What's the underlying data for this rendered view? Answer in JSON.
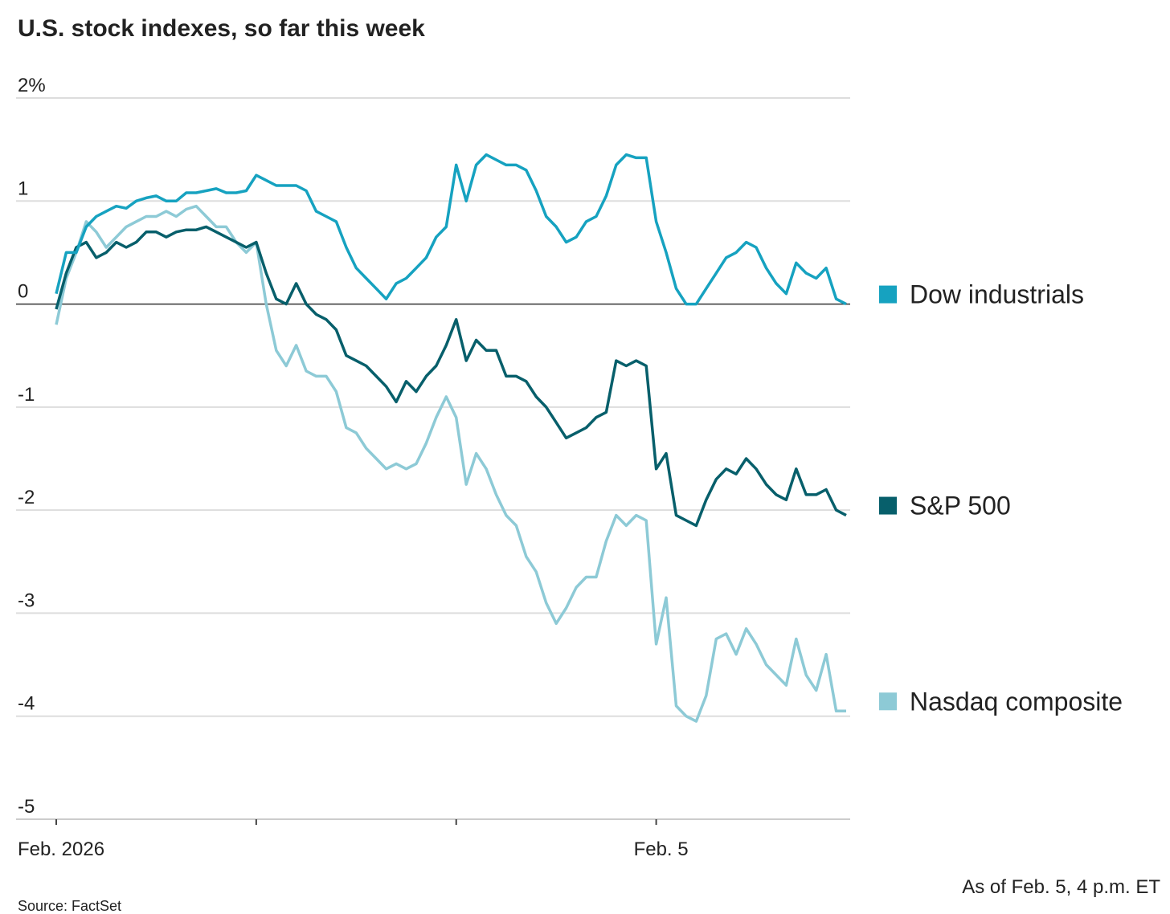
{
  "chart_data": {
    "type": "line",
    "title": "U.S. stock indexes, so far this week",
    "note": "As of Feb. 5, 4 p.m. ET",
    "source": "Source: FactSet",
    "x": [
      0,
      0.05,
      0.1,
      0.15,
      0.2,
      0.25,
      0.3,
      0.35,
      0.4,
      0.45,
      0.5,
      0.55,
      0.6,
      0.65,
      0.7,
      0.75,
      0.8,
      0.85,
      0.9,
      0.95,
      1,
      1.05,
      1.1,
      1.15,
      1.2,
      1.25,
      1.3,
      1.35,
      1.4,
      1.45,
      1.5,
      1.55,
      1.6,
      1.65,
      1.7,
      1.75,
      1.8,
      1.85,
      1.9,
      1.95,
      2,
      2.05,
      2.1,
      2.15,
      2.2,
      2.25,
      2.3,
      2.35,
      2.4,
      2.45,
      2.5,
      2.55,
      2.6,
      2.65,
      2.7,
      2.75,
      2.8,
      2.85,
      2.9,
      2.95,
      3,
      3.05,
      3.1,
      3.15,
      3.2,
      3.25,
      3.3,
      3.35,
      3.4,
      3.45,
      3.5,
      3.55,
      3.6,
      3.65,
      3.7,
      3.75,
      3.8,
      3.85,
      3.9,
      3.95
    ],
    "series": [
      {
        "name": "Dow industrials",
        "color": "#16a2c0",
        "values": [
          0.1,
          0.5,
          0.5,
          0.75,
          0.85,
          0.9,
          0.95,
          0.93,
          1.0,
          1.03,
          1.05,
          1.0,
          1.0,
          1.08,
          1.08,
          1.1,
          1.12,
          1.08,
          1.08,
          1.1,
          1.25,
          1.2,
          1.15,
          1.15,
          1.15,
          1.1,
          0.9,
          0.85,
          0.8,
          0.55,
          0.35,
          0.25,
          0.15,
          0.05,
          0.2,
          0.25,
          0.35,
          0.45,
          0.65,
          0.75,
          1.35,
          1.0,
          1.35,
          1.45,
          1.4,
          1.35,
          1.35,
          1.3,
          1.1,
          0.85,
          0.75,
          0.6,
          0.65,
          0.8,
          0.85,
          1.05,
          1.35,
          1.45,
          1.42,
          1.42,
          0.8,
          0.5,
          0.15,
          0.0,
          0.0,
          0.15,
          0.3,
          0.45,
          0.5,
          0.6,
          0.55,
          0.35,
          0.2,
          0.1,
          0.4,
          0.3,
          0.25,
          0.35,
          0.05,
          0.0
        ]
      },
      {
        "name": "S&P 500",
        "color": "#075f6b",
        "values": [
          -0.05,
          0.3,
          0.55,
          0.6,
          0.45,
          0.5,
          0.6,
          0.55,
          0.6,
          0.7,
          0.7,
          0.65,
          0.7,
          0.72,
          0.72,
          0.75,
          0.7,
          0.65,
          0.6,
          0.55,
          0.6,
          0.3,
          0.05,
          0.0,
          0.2,
          0.0,
          -0.1,
          -0.15,
          -0.25,
          -0.5,
          -0.55,
          -0.6,
          -0.7,
          -0.8,
          -0.95,
          -0.75,
          -0.85,
          -0.7,
          -0.6,
          -0.4,
          -0.15,
          -0.55,
          -0.35,
          -0.45,
          -0.45,
          -0.7,
          -0.7,
          -0.75,
          -0.9,
          -1.0,
          -1.15,
          -1.3,
          -1.25,
          -1.2,
          -1.1,
          -1.05,
          -0.55,
          -0.6,
          -0.55,
          -0.6,
          -1.6,
          -1.45,
          -2.05,
          -2.1,
          -2.15,
          -1.9,
          -1.7,
          -1.6,
          -1.65,
          -1.5,
          -1.6,
          -1.75,
          -1.85,
          -1.9,
          -1.6,
          -1.85,
          -1.85,
          -1.8,
          -2.0,
          -2.05
        ]
      },
      {
        "name": "Nasdaq composite",
        "color": "#8dcad6",
        "values": [
          -0.2,
          0.25,
          0.5,
          0.8,
          0.7,
          0.55,
          0.65,
          0.75,
          0.8,
          0.85,
          0.85,
          0.9,
          0.85,
          0.92,
          0.95,
          0.85,
          0.75,
          0.75,
          0.6,
          0.5,
          0.6,
          0.0,
          -0.45,
          -0.6,
          -0.4,
          -0.65,
          -0.7,
          -0.7,
          -0.85,
          -1.2,
          -1.25,
          -1.4,
          -1.5,
          -1.6,
          -1.55,
          -1.6,
          -1.55,
          -1.35,
          -1.1,
          -0.9,
          -1.1,
          -1.75,
          -1.45,
          -1.6,
          -1.85,
          -2.05,
          -2.15,
          -2.45,
          -2.6,
          -2.9,
          -3.1,
          -2.95,
          -2.75,
          -2.65,
          -2.65,
          -2.3,
          -2.05,
          -2.15,
          -2.05,
          -2.1,
          -3.3,
          -2.85,
          -3.9,
          -4.0,
          -4.05,
          -3.8,
          -3.25,
          -3.2,
          -3.4,
          -3.15,
          -3.3,
          -3.5,
          -3.6,
          -3.7,
          -3.25,
          -3.6,
          -3.75,
          -3.4,
          -3.95,
          -3.95
        ]
      }
    ],
    "xlim": [
      0,
      3.97
    ],
    "xticks": [
      {
        "value": 0,
        "label": "Feb. 2026"
      },
      {
        "value": 3,
        "label": "Feb. 5"
      }
    ],
    "minor_xticks": [
      1,
      2
    ],
    "ylim": [
      -5,
      2
    ],
    "yticks": [
      {
        "value": 2,
        "label": "2%"
      },
      1,
      0,
      -1,
      -2,
      -3,
      -4,
      -5
    ],
    "grid": true
  }
}
